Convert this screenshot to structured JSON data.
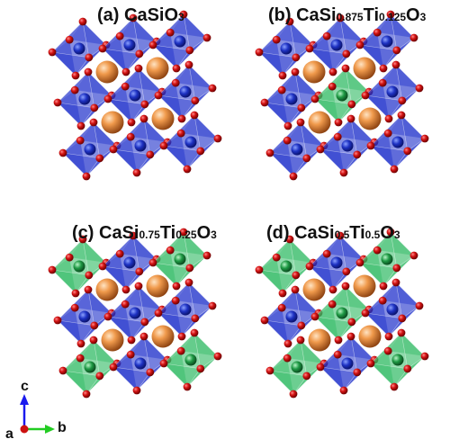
{
  "panels": [
    {
      "id": "a",
      "parts": [
        {
          "t": "(a) CaSiO"
        },
        {
          "t": "3",
          "sub": true
        }
      ],
      "green": []
    },
    {
      "id": "b",
      "parts": [
        {
          "t": "(b) CaSi"
        },
        {
          "t": "0.875",
          "sub": true
        },
        {
          "t": "Ti"
        },
        {
          "t": "0.125",
          "sub": true
        },
        {
          "t": "O"
        },
        {
          "t": "3",
          "sub": true
        }
      ],
      "green": [
        [
          1,
          1
        ]
      ]
    },
    {
      "id": "c",
      "parts": [
        {
          "t": "(c) CaSi"
        },
        {
          "t": "0.75",
          "sub": true
        },
        {
          "t": "Ti"
        },
        {
          "t": "0.25",
          "sub": true
        },
        {
          "t": "O"
        },
        {
          "t": "3",
          "sub": true
        }
      ],
      "green": [
        [
          0,
          0
        ],
        [
          2,
          0
        ],
        [
          0,
          2
        ],
        [
          2,
          2
        ]
      ]
    },
    {
      "id": "d",
      "parts": [
        {
          "t": "(d) CaSi"
        },
        {
          "t": "0.5",
          "sub": true
        },
        {
          "t": "Ti"
        },
        {
          "t": "0.5",
          "sub": true
        },
        {
          "t": "O"
        },
        {
          "t": "3",
          "sub": true
        }
      ],
      "green": [
        [
          0,
          0
        ],
        [
          2,
          0
        ],
        [
          1,
          1
        ],
        [
          0,
          2
        ],
        [
          2,
          2
        ]
      ]
    }
  ],
  "axes": {
    "c": "c",
    "a": "a",
    "b": "b"
  },
  "colors": {
    "si_octahedron": "#2233cc",
    "ti_octahedron": "#33bb66",
    "oxygen": "#d41414",
    "calcium": "#e8873a",
    "axis_c": "#1a1aee",
    "axis_b": "#22cc22",
    "axis_a": "#cc1111"
  }
}
